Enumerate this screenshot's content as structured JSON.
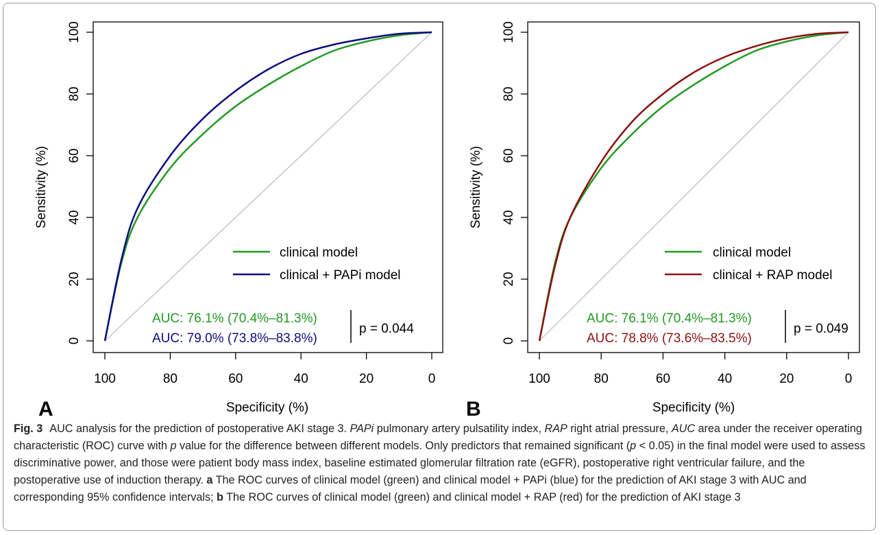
{
  "chart_data": [
    {
      "type": "line",
      "panel_label": "A",
      "xlabel": "Specificity (%)",
      "ylabel": "Sensitivity (%)",
      "xlim": [
        100,
        0
      ],
      "ylim": [
        0,
        100
      ],
      "x_ticks": [
        "100",
        "80",
        "60",
        "40",
        "20",
        "0"
      ],
      "y_ticks": [
        "0",
        "20",
        "40",
        "60",
        "80",
        "100"
      ],
      "grid": false,
      "legend_position": "bottom-right",
      "diagonal_reference": true,
      "series": [
        {
          "name": "clinical model",
          "color": "#229922",
          "points": [
            [
              100,
              0
            ],
            [
              95,
              25
            ],
            [
              90,
              40
            ],
            [
              80,
              56
            ],
            [
              70,
              67
            ],
            [
              60,
              76
            ],
            [
              50,
              83
            ],
            [
              40,
              89
            ],
            [
              30,
              94
            ],
            [
              20,
              97
            ],
            [
              10,
              99
            ],
            [
              0,
              100
            ]
          ]
        },
        {
          "name": "clinical + PAPi model",
          "color": "#0c0c80",
          "points": [
            [
              100,
              0
            ],
            [
              95,
              26
            ],
            [
              90,
              43
            ],
            [
              80,
              60
            ],
            [
              70,
              72
            ],
            [
              60,
              81
            ],
            [
              50,
              88
            ],
            [
              40,
              93
            ],
            [
              30,
              96
            ],
            [
              20,
              98
            ],
            [
              10,
              99.5
            ],
            [
              0,
              100
            ]
          ]
        }
      ],
      "annotations": {
        "auc_1": "AUC: 76.1% (70.4%–81.3%)",
        "auc_2": "AUC: 79.0% (73.8%–83.8%)",
        "p_value": "p = 0.044"
      }
    },
    {
      "type": "line",
      "panel_label": "B",
      "xlabel": "Specificity (%)",
      "ylabel": "Sensitivity (%)",
      "xlim": [
        100,
        0
      ],
      "ylim": [
        0,
        100
      ],
      "x_ticks": [
        "100",
        "80",
        "60",
        "40",
        "20",
        "0"
      ],
      "y_ticks": [
        "0",
        "20",
        "40",
        "60",
        "80",
        "100"
      ],
      "grid": false,
      "legend_position": "bottom-right",
      "diagonal_reference": true,
      "series": [
        {
          "name": "clinical model",
          "color": "#229922",
          "points": [
            [
              100,
              0
            ],
            [
              95,
              25
            ],
            [
              90,
              40
            ],
            [
              80,
              56
            ],
            [
              70,
              67
            ],
            [
              60,
              76
            ],
            [
              50,
              83
            ],
            [
              40,
              89
            ],
            [
              30,
              94
            ],
            [
              20,
              97
            ],
            [
              10,
              99
            ],
            [
              0,
              100
            ]
          ]
        },
        {
          "name": "clinical + RAP model",
          "color": "#8b1010",
          "points": [
            [
              100,
              0
            ],
            [
              95,
              24
            ],
            [
              90,
              40
            ],
            [
              80,
              58
            ],
            [
              70,
              71
            ],
            [
              60,
              80
            ],
            [
              50,
              87
            ],
            [
              40,
              92
            ],
            [
              30,
              95.5
            ],
            [
              20,
              98
            ],
            [
              10,
              99.5
            ],
            [
              0,
              100
            ]
          ]
        }
      ],
      "annotations": {
        "auc_1": "AUC: 76.1% (70.4%–81.3%)",
        "auc_2": "AUC: 78.8% (73.6%–83.5%)",
        "p_value": "p = 0.049"
      }
    }
  ],
  "caption": {
    "fig_label": "Fig. 3",
    "s1": "AUC analysis for the prediction of postoperative AKI stage 3. ",
    "abbr1": "PAPi",
    "s2": " pulmonary artery pulsatility index, ",
    "abbr2": "RAP",
    "s3": " right atrial pressure, ",
    "abbr3": "AUC",
    "s4": " area under the receiver operating characteristic (ROC) curve with ",
    "abbr4": "p",
    "s5": " value for the difference between different models. Only predictors that remained significant (",
    "abbr5": "p",
    "s6": " < 0.05) in the final model were used to assess discriminative power, and those were patient body mass index, baseline estimated glomerular filtration rate (eGFR), postoperative right ventricular failure, and the postoperative use of induction therapy. ",
    "label_a": "a",
    "s7": " The ROC curves of clinical model (green) and clinical model + PAPi (blue) for the prediction of AKI stage 3 with AUC and corresponding 95% confidence intervals; ",
    "label_b": "b",
    "s8": " The ROC curves of clinical model (green) and clinical model + RAP (red) for the prediction of AKI stage 3"
  }
}
